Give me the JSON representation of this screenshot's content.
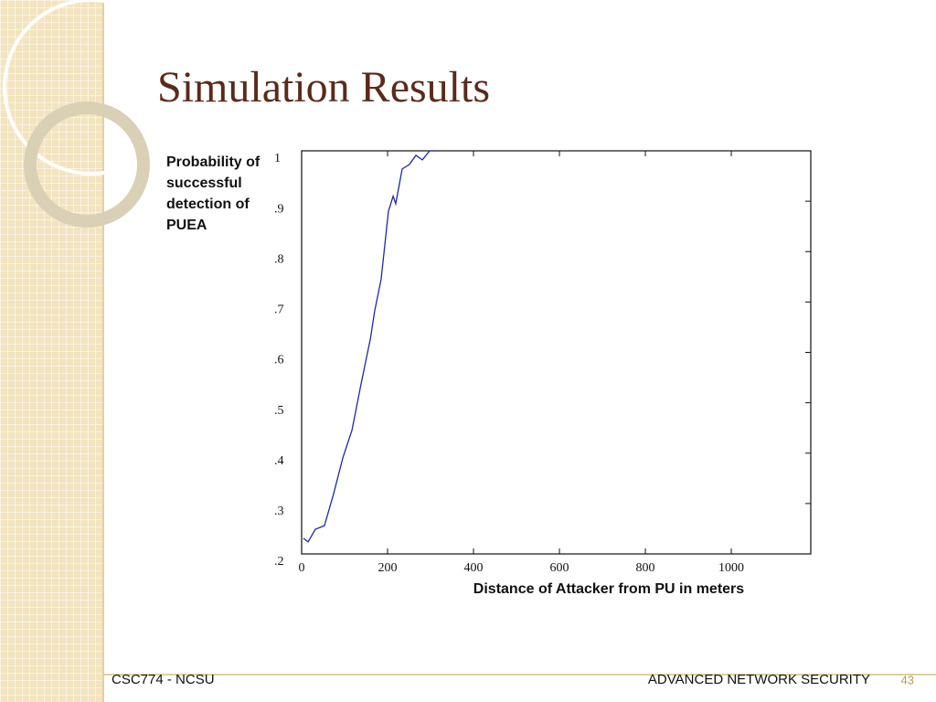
{
  "chart_data": {
    "type": "line",
    "title": "Simulation Results",
    "ylabel": "Probability of successful detection of PUEA",
    "xlabel": "Distance of Attacker from PU in meters",
    "xlim": [
      0,
      1185
    ],
    "xticks": [
      0,
      200,
      400,
      600,
      800,
      1000
    ],
    "ylim": [
      0.2,
      1
    ],
    "yticks": [
      {
        "value": 0.2,
        "label": ".2"
      },
      {
        "value": 0.3,
        "label": ".3"
      },
      {
        "value": 0.4,
        "label": ".4"
      },
      {
        "value": 0.5,
        "label": ".5"
      },
      {
        "value": 0.6,
        "label": ".6"
      },
      {
        "value": 0.7,
        "label": ".7"
      },
      {
        "value": 0.8,
        "label": ".8"
      },
      {
        "value": 0.9,
        "label": ".9"
      },
      1
    ],
    "x": [
      4,
      15,
      32,
      53,
      74,
      96,
      117,
      138,
      160,
      170,
      185,
      202,
      213,
      219,
      234,
      251,
      266,
      281,
      298,
      315
    ],
    "series": [
      {
        "color": "#1f2a9e",
        "values": [
          0.231,
          0.224,
          0.249,
          0.256,
          0.318,
          0.391,
          0.445,
          0.536,
          0.627,
          0.682,
          0.745,
          0.88,
          0.91,
          0.895,
          0.964,
          0.973,
          0.991,
          0.982,
          1.0,
          1.0
        ]
      }
    ]
  },
  "footer": {
    "left": "CSC774  - NCSU",
    "right": "ADVANCED NETWORK SECURITY",
    "page": "43"
  }
}
